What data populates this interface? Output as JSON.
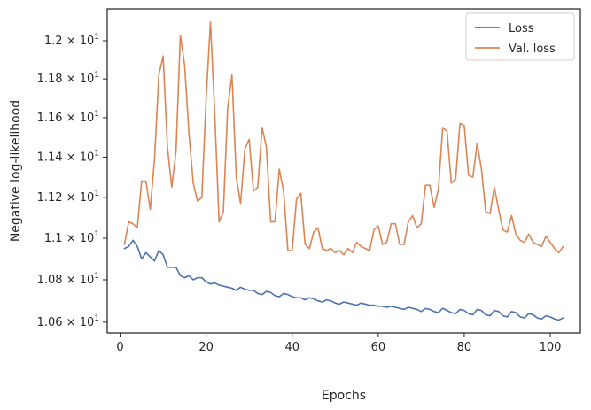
{
  "chart_data": {
    "type": "line",
    "xlabel": "Epochs",
    "ylabel": "Negative log-likelihood",
    "xlim": [
      -3,
      107
    ],
    "ylim": [
      10.55,
      12.17
    ],
    "yscale": "log",
    "grid": false,
    "legend": "top-right",
    "x_ticks": [
      0,
      20,
      40,
      60,
      80,
      100
    ],
    "x_tick_labels": [
      "0",
      "20",
      "40",
      "60",
      "80",
      "100"
    ],
    "y_ticks": [
      10.6,
      10.8,
      11.0,
      11.2,
      11.4,
      11.6,
      11.8,
      12.0
    ],
    "y_tick_labels": [
      {
        "base": "1.06 × 10",
        "exp": "1"
      },
      {
        "base": "1.08 × 10",
        "exp": "1"
      },
      {
        "base": "1.1 × 10",
        "exp": "1"
      },
      {
        "base": "1.12 × 10",
        "exp": "1"
      },
      {
        "base": "1.14 × 10",
        "exp": "1"
      },
      {
        "base": "1.16 × 10",
        "exp": "1"
      },
      {
        "base": "1.18 × 10",
        "exp": "1"
      },
      {
        "base": "1.2 × 10",
        "exp": "1"
      }
    ],
    "x": [
      1,
      2,
      3,
      4,
      5,
      6,
      7,
      8,
      9,
      10,
      11,
      12,
      13,
      14,
      15,
      16,
      17,
      18,
      19,
      20,
      21,
      22,
      23,
      24,
      25,
      26,
      27,
      28,
      29,
      30,
      31,
      32,
      33,
      34,
      35,
      36,
      37,
      38,
      39,
      40,
      41,
      42,
      43,
      44,
      45,
      46,
      47,
      48,
      49,
      50,
      51,
      52,
      53,
      54,
      55,
      56,
      57,
      58,
      59,
      60,
      61,
      62,
      63,
      64,
      65,
      66,
      67,
      68,
      69,
      70,
      71,
      72,
      73,
      74,
      75,
      76,
      77,
      78,
      79,
      80,
      81,
      82,
      83,
      84,
      85,
      86,
      87,
      88,
      89,
      90,
      91,
      92,
      93,
      94,
      95,
      96,
      97,
      98,
      99,
      100,
      101,
      102,
      103
    ],
    "series": [
      {
        "name": "Loss",
        "color": "#4c72b0",
        "values": [
          10.95,
          10.96,
          10.99,
          10.96,
          10.9,
          10.93,
          10.91,
          10.89,
          10.94,
          10.92,
          10.86,
          10.86,
          10.86,
          10.82,
          10.81,
          10.82,
          10.8,
          10.81,
          10.81,
          10.79,
          10.78,
          10.785,
          10.775,
          10.77,
          10.765,
          10.76,
          10.75,
          10.765,
          10.755,
          10.75,
          10.75,
          10.735,
          10.73,
          10.745,
          10.74,
          10.725,
          10.72,
          10.735,
          10.73,
          10.72,
          10.715,
          10.715,
          10.705,
          10.715,
          10.71,
          10.7,
          10.695,
          10.705,
          10.7,
          10.69,
          10.685,
          10.695,
          10.69,
          10.685,
          10.68,
          10.69,
          10.685,
          10.68,
          10.68,
          10.675,
          10.675,
          10.67,
          10.675,
          10.67,
          10.665,
          10.66,
          10.67,
          10.665,
          10.66,
          10.65,
          10.665,
          10.66,
          10.65,
          10.645,
          10.665,
          10.655,
          10.645,
          10.64,
          10.66,
          10.655,
          10.64,
          10.635,
          10.66,
          10.655,
          10.635,
          10.63,
          10.655,
          10.65,
          10.63,
          10.625,
          10.65,
          10.645,
          10.625,
          10.62,
          10.64,
          10.635,
          10.62,
          10.615,
          10.63,
          10.625,
          10.615,
          10.61,
          10.62
        ]
      },
      {
        "name": "Val. loss",
        "color": "#dd8452",
        "values": [
          10.97,
          11.08,
          11.07,
          11.05,
          11.28,
          11.28,
          11.14,
          11.39,
          11.82,
          11.92,
          11.45,
          11.25,
          11.43,
          12.03,
          11.87,
          11.52,
          11.27,
          11.18,
          11.2,
          11.7,
          12.1,
          11.62,
          11.08,
          11.13,
          11.65,
          11.82,
          11.3,
          11.17,
          11.44,
          11.49,
          11.23,
          11.25,
          11.55,
          11.45,
          11.08,
          11.08,
          11.34,
          11.23,
          10.94,
          10.94,
          11.19,
          11.22,
          10.97,
          10.95,
          11.03,
          11.05,
          10.95,
          10.94,
          10.95,
          10.93,
          10.94,
          10.92,
          10.95,
          10.93,
          10.98,
          10.96,
          10.95,
          10.94,
          11.04,
          11.06,
          10.97,
          10.98,
          11.07,
          11.07,
          10.97,
          10.97,
          11.08,
          11.11,
          11.05,
          11.07,
          11.26,
          11.26,
          11.15,
          11.24,
          11.55,
          11.53,
          11.27,
          11.29,
          11.57,
          11.56,
          11.31,
          11.3,
          11.47,
          11.34,
          11.13,
          11.12,
          11.25,
          11.14,
          11.04,
          11.03,
          11.11,
          11.02,
          10.99,
          10.98,
          11.02,
          10.98,
          10.97,
          10.96,
          11.01,
          10.98,
          10.95,
          10.93,
          10.96
        ]
      }
    ]
  }
}
